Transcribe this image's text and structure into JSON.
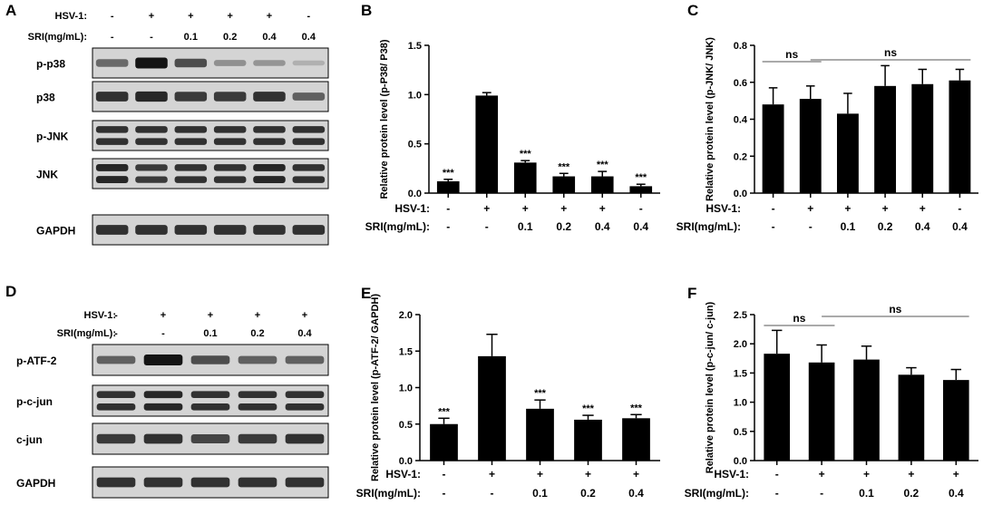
{
  "panels": {
    "A": {
      "label": "A",
      "treatments": [
        {
          "label": "HSV-1:",
          "values": [
            "-",
            "+",
            "+",
            "+",
            "+",
            "-"
          ]
        },
        {
          "label": "SRI(mg/mL):",
          "values": [
            "-",
            "-",
            "0.1",
            "0.2",
            "0.4",
            "0.4"
          ]
        }
      ],
      "rows": [
        {
          "label": "p-p38",
          "intensity": [
            0.55,
            1.0,
            0.7,
            0.35,
            0.32,
            0.18
          ]
        },
        {
          "label": "p38",
          "intensity": [
            0.85,
            0.9,
            0.8,
            0.8,
            0.85,
            0.6
          ]
        },
        {
          "label": "p-JNK",
          "intensity": [
            0.85,
            0.85,
            0.85,
            0.85,
            0.85,
            0.85
          ],
          "double": true
        },
        {
          "label": "JNK",
          "intensity": [
            0.9,
            0.8,
            0.85,
            0.85,
            0.9,
            0.85
          ],
          "double": true
        },
        {
          "label": "GAPDH",
          "intensity": [
            0.85,
            0.85,
            0.85,
            0.85,
            0.85,
            0.85
          ]
        }
      ]
    },
    "D": {
      "label": "D",
      "treatments": [
        {
          "label": "HSV-1:",
          "values": [
            "-",
            "+",
            "+",
            "+",
            "+"
          ]
        },
        {
          "label": "SRI(mg/mL):",
          "values": [
            "-",
            "-",
            "0.1",
            "0.2",
            "0.4"
          ]
        }
      ],
      "rows": [
        {
          "label": "p-ATF-2",
          "intensity": [
            0.6,
            1.0,
            0.7,
            0.6,
            0.6
          ]
        },
        {
          "label": "p-c-jun",
          "intensity": [
            0.85,
            0.9,
            0.85,
            0.85,
            0.85
          ],
          "double": true
        },
        {
          "label": "c-jun",
          "intensity": [
            0.8,
            0.85,
            0.75,
            0.8,
            0.85
          ]
        },
        {
          "label": "GAPDH",
          "intensity": [
            0.85,
            0.85,
            0.85,
            0.85,
            0.85
          ]
        }
      ]
    }
  },
  "chart_data": [
    {
      "panel": "B",
      "type": "bar",
      "ylabel": "Relative protein level (p-P38/ P38)",
      "ylim": [
        0,
        1.5
      ],
      "yticks": [
        "0.0",
        "0.5",
        "1.0",
        "1.5"
      ],
      "values": [
        0.12,
        0.99,
        0.31,
        0.17,
        0.17,
        0.07
      ],
      "errors": [
        0.02,
        0.03,
        0.02,
        0.03,
        0.05,
        0.02
      ],
      "annotations": [
        "***",
        "",
        "***",
        "***",
        "***",
        "***"
      ],
      "treatments": [
        {
          "label": "HSV-1:",
          "values": [
            "-",
            "+",
            "+",
            "+",
            "+",
            "-"
          ]
        },
        {
          "label": "SRI(mg/mL):",
          "values": [
            "-",
            "-",
            "0.1",
            "0.2",
            "0.4",
            "0.4"
          ]
        }
      ],
      "brackets": []
    },
    {
      "panel": "C",
      "type": "bar",
      "ylabel": "Relative protein level (p-JNK/ JNK)",
      "ylim": [
        0,
        0.8
      ],
      "yticks": [
        "0.0",
        "0.2",
        "0.4",
        "0.6",
        "0.8"
      ],
      "values": [
        0.48,
        0.51,
        0.43,
        0.58,
        0.59,
        0.61
      ],
      "errors": [
        0.09,
        0.07,
        0.11,
        0.11,
        0.08,
        0.06
      ],
      "annotations": [
        "",
        "",
        "",
        "",
        "",
        ""
      ],
      "treatments": [
        {
          "label": "HSV-1:",
          "values": [
            "-",
            "+",
            "+",
            "+",
            "+",
            "-"
          ]
        },
        {
          "label": "SRI(mg/mL):",
          "values": [
            "-",
            "-",
            "0.1",
            "0.2",
            "0.4",
            "0.4"
          ]
        }
      ],
      "brackets": [
        {
          "from": 0,
          "to": 1,
          "label": "ns"
        },
        {
          "from": 1,
          "to": 5,
          "label": "ns"
        }
      ]
    },
    {
      "panel": "E",
      "type": "bar",
      "ylabel": "Relative protein level (p-ATF-2/ GAPDH)",
      "ylim": [
        0,
        2.0
      ],
      "yticks": [
        "0.0",
        "0.5",
        "1.0",
        "1.5",
        "2.0"
      ],
      "values": [
        0.5,
        1.43,
        0.71,
        0.56,
        0.58
      ],
      "errors": [
        0.08,
        0.3,
        0.12,
        0.06,
        0.05
      ],
      "annotations": [
        "***",
        "",
        "***",
        "***",
        "***"
      ],
      "treatments": [
        {
          "label": "HSV-1:",
          "values": [
            "-",
            "+",
            "+",
            "+",
            "+"
          ]
        },
        {
          "label": "SRI(mg/mL):",
          "values": [
            "-",
            "-",
            "0.1",
            "0.2",
            "0.4"
          ]
        }
      ],
      "brackets": []
    },
    {
      "panel": "F",
      "type": "bar",
      "ylabel": "Relative protein level (p-c-jun/ c-jun)",
      "ylim": [
        0,
        2.5
      ],
      "yticks": [
        "0.0",
        "0.5",
        "1.0",
        "1.5",
        "2.0",
        "2.5"
      ],
      "values": [
        1.83,
        1.68,
        1.73,
        1.47,
        1.38
      ],
      "errors": [
        0.4,
        0.3,
        0.23,
        0.12,
        0.18
      ],
      "annotations": [
        "",
        "",
        "",
        "",
        ""
      ],
      "treatments": [
        {
          "label": "HSV-1:",
          "values": [
            "-",
            "+",
            "+",
            "+",
            "+"
          ]
        },
        {
          "label": "SRI(mg/mL):",
          "values": [
            "-",
            "-",
            "0.1",
            "0.2",
            "0.4"
          ]
        }
      ],
      "brackets": [
        {
          "from": 0,
          "to": 1,
          "label": "ns"
        },
        {
          "from": 1,
          "to": 4,
          "label": "ns"
        }
      ]
    }
  ]
}
